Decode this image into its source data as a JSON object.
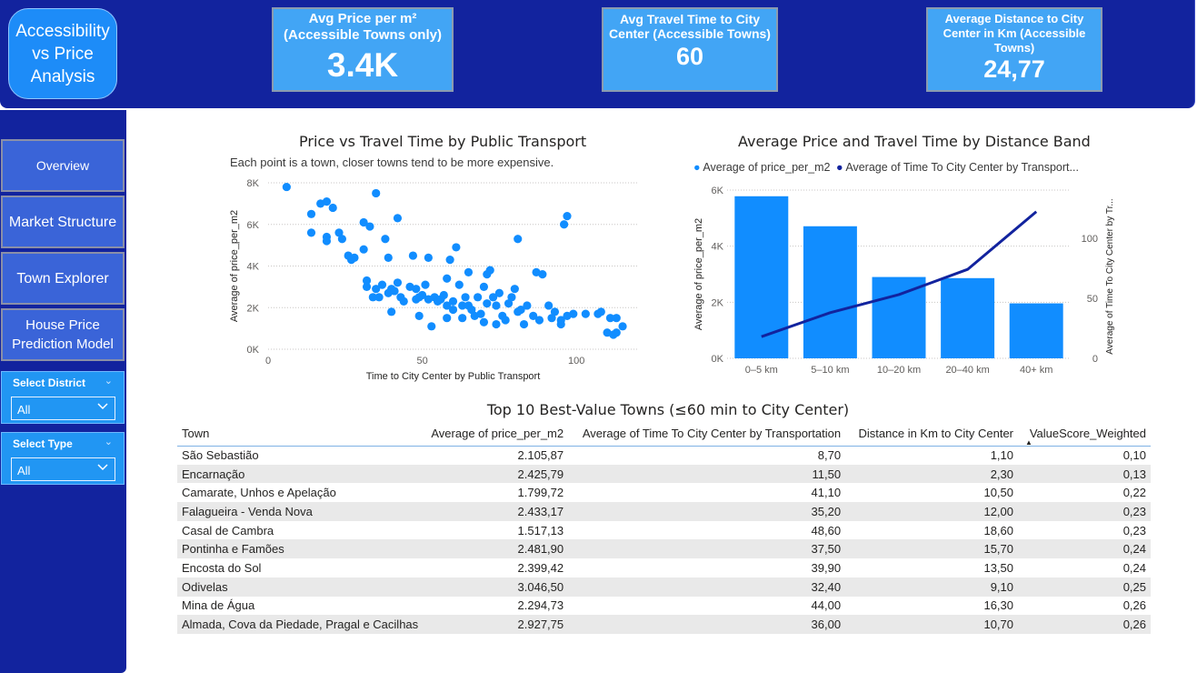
{
  "header": {
    "title": "Accessibility vs Price Analysis",
    "kpis": [
      {
        "label": "Avg Price per m² (Accessible Towns only)",
        "value": "3.4K"
      },
      {
        "label": "Avg Travel Time to City Center (Accessible Towns)",
        "value": "60"
      },
      {
        "label": "Average Distance to City Center in Km (Accessible Towns)",
        "value": "24,77"
      }
    ]
  },
  "sidebar": {
    "nav": [
      "Overview",
      "Market Structure",
      "Town Explorer",
      "House Price Prediction Model"
    ],
    "slicers": [
      {
        "label": "Select District",
        "value": "All",
        "chevron": "⌄",
        "dropdown_icon": "chevron-down-icon"
      },
      {
        "label": "Select Type",
        "value": "All",
        "chevron": "⌄",
        "dropdown_icon": "chevron-down-icon"
      }
    ]
  },
  "scatter": {
    "title": "Price vs Travel Time by Public Transport",
    "subtitle": "Each point is a town, closer towns tend to be more expensive."
  },
  "combo": {
    "title": "Average Price and Travel Time by Distance Band"
  },
  "chart_data": [
    {
      "type": "scatter",
      "title": "Price vs Travel Time by Public Transport",
      "xlabel": "Time to City Center by Public Transport",
      "ylabel": "Average of price_per_m2",
      "xlim": [
        0,
        120
      ],
      "ylim": [
        0,
        8000
      ],
      "xticks": [
        "0",
        "50",
        "100"
      ],
      "yticks": [
        "0K",
        "2K",
        "4K",
        "6K",
        "8K"
      ],
      "grid": true,
      "color": "#118dff",
      "points": [
        [
          6,
          7800
        ],
        [
          14,
          6500
        ],
        [
          14,
          5600
        ],
        [
          17,
          7000
        ],
        [
          19,
          7100
        ],
        [
          19,
          5400
        ],
        [
          19,
          5200
        ],
        [
          21,
          6800
        ],
        [
          23,
          5600
        ],
        [
          24,
          5300
        ],
        [
          26,
          4500
        ],
        [
          27,
          4300
        ],
        [
          28,
          4400
        ],
        [
          31,
          6100
        ],
        [
          31,
          4800
        ],
        [
          32,
          3300
        ],
        [
          32,
          3000
        ],
        [
          33,
          5900
        ],
        [
          34,
          2500
        ],
        [
          35,
          2900
        ],
        [
          35,
          7500
        ],
        [
          36,
          2500
        ],
        [
          37,
          3100
        ],
        [
          38,
          5300
        ],
        [
          39,
          4400
        ],
        [
          39,
          2700
        ],
        [
          40,
          2900
        ],
        [
          40,
          1800
        ],
        [
          41,
          2800
        ],
        [
          42,
          6300
        ],
        [
          42,
          3200
        ],
        [
          43,
          2500
        ],
        [
          44,
          2300
        ],
        [
          46,
          3000
        ],
        [
          47,
          4500
        ],
        [
          48,
          2900
        ],
        [
          48,
          2400
        ],
        [
          49,
          1600
        ],
        [
          49,
          2500
        ],
        [
          50,
          2600
        ],
        [
          51,
          3100
        ],
        [
          52,
          4400
        ],
        [
          52,
          2400
        ],
        [
          53,
          1100
        ],
        [
          54,
          2500
        ],
        [
          55,
          2300
        ],
        [
          56,
          2400
        ],
        [
          57,
          2600
        ],
        [
          58,
          3400
        ],
        [
          58,
          2100
        ],
        [
          58,
          1500
        ],
        [
          59,
          4300
        ],
        [
          60,
          2300
        ],
        [
          60,
          1900
        ],
        [
          61,
          4900
        ],
        [
          62,
          3100
        ],
        [
          63,
          2100
        ],
        [
          63,
          1500
        ],
        [
          64,
          2500
        ],
        [
          65,
          3700
        ],
        [
          65,
          2100
        ],
        [
          66,
          1900
        ],
        [
          67,
          1600
        ],
        [
          68,
          2500
        ],
        [
          69,
          1700
        ],
        [
          70,
          3000
        ],
        [
          70,
          1300
        ],
        [
          71,
          2200
        ],
        [
          71,
          3600
        ],
        [
          72,
          3800
        ],
        [
          73,
          2500
        ],
        [
          74,
          1200
        ],
        [
          74,
          2100
        ],
        [
          75,
          2700
        ],
        [
          76,
          1600
        ],
        [
          77,
          1400
        ],
        [
          78,
          2200
        ],
        [
          79,
          2500
        ],
        [
          80,
          2900
        ],
        [
          81,
          5300
        ],
        [
          81,
          1800
        ],
        [
          82,
          1900
        ],
        [
          83,
          1200
        ],
        [
          84,
          2100
        ],
        [
          86,
          1600
        ],
        [
          87,
          3700
        ],
        [
          88,
          1400
        ],
        [
          89,
          3600
        ],
        [
          91,
          2100
        ],
        [
          92,
          1500
        ],
        [
          93,
          1800
        ],
        [
          95,
          1400
        ],
        [
          95,
          1200
        ],
        [
          96,
          6000
        ],
        [
          97,
          1600
        ],
        [
          97,
          6400
        ],
        [
          99,
          1700
        ],
        [
          103,
          1700
        ],
        [
          107,
          1700
        ],
        [
          108,
          1800
        ],
        [
          110,
          800
        ],
        [
          111,
          1500
        ],
        [
          112,
          700
        ],
        [
          113,
          800
        ],
        [
          113,
          1500
        ],
        [
          115,
          1100
        ]
      ]
    },
    {
      "type": "bar",
      "title": "Average Price and Travel Time by Distance Band",
      "categories": [
        "0–5 km",
        "5–10 km",
        "10–20 km",
        "20–40 km",
        "40+ km"
      ],
      "ylabel": "Average of price_per_m2",
      "y2label": "Average of Time To City Center by Tr...",
      "ylim": [
        0,
        6000
      ],
      "y2lim": [
        0,
        140
      ],
      "yticks": [
        "0K",
        "2K",
        "4K",
        "6K"
      ],
      "y2ticks": [
        "0",
        "50",
        "100"
      ],
      "legend_position": "top",
      "series": [
        {
          "name": "Average of price_per_m2",
          "type": "bar",
          "color": "#118dff",
          "values": [
            5780,
            4710,
            2900,
            2860,
            1960
          ]
        },
        {
          "name": "Average of Time To City Center by Transport...",
          "type": "line",
          "color": "#12239e",
          "values": [
            18,
            38,
            53,
            74,
            122
          ]
        }
      ]
    }
  ],
  "table": {
    "title": "Top 10 Best-Value Towns (≤60 min to City Center)",
    "sort_indicator": "▲",
    "columns": [
      "Town",
      "Average of price_per_m2",
      "Average of Time To City Center by Transportation",
      "Distance in Km to City Center",
      "ValueScore_Weighted"
    ],
    "rows": [
      [
        "São Sebastião",
        "2.105,87",
        "8,70",
        "1,10",
        "0,10"
      ],
      [
        "Encarnação",
        "2.425,79",
        "11,50",
        "2,30",
        "0,13"
      ],
      [
        "Camarate, Unhos e Apelação",
        "1.799,72",
        "41,10",
        "10,50",
        "0,22"
      ],
      [
        "Falagueira - Venda Nova",
        "2.433,17",
        "35,20",
        "12,00",
        "0,23"
      ],
      [
        "Casal de Cambra",
        "1.517,13",
        "48,60",
        "18,60",
        "0,23"
      ],
      [
        "Pontinha e Famões",
        "2.481,90",
        "37,50",
        "15,70",
        "0,24"
      ],
      [
        "Encosta do Sol",
        "2.399,42",
        "39,90",
        "13,50",
        "0,24"
      ],
      [
        "Odivelas",
        "3.046,50",
        "32,40",
        "9,10",
        "0,25"
      ],
      [
        "Mina de Água",
        "2.294,73",
        "44,00",
        "16,30",
        "0,26"
      ],
      [
        "Almada, Cova da Piedade, Pragal e Cacilhas",
        "2.927,75",
        "36,00",
        "10,70",
        "0,26"
      ]
    ]
  }
}
